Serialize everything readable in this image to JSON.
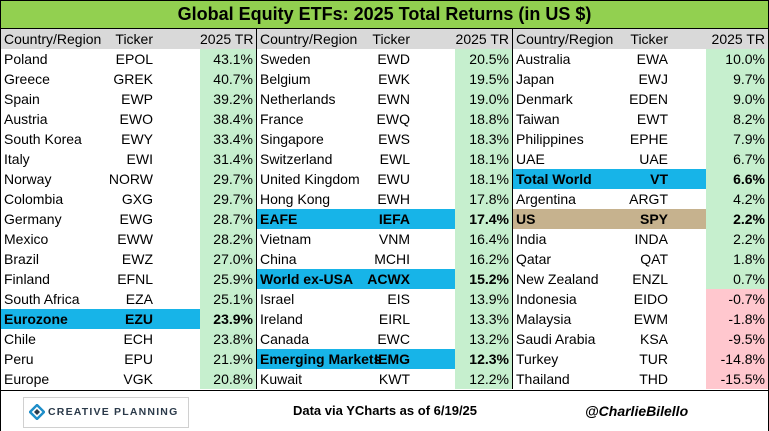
{
  "chart_data": {
    "type": "table",
    "title": "Global Equity ETFs: 2025 Total Returns (in US $)",
    "columns": [
      "Country/Region",
      "Ticker",
      "2025 TR"
    ],
    "unit": "%",
    "tables": [
      {
        "rows": [
          {
            "name": "Poland",
            "ticker": "EPOL",
            "value": "43.1%",
            "v": 43.1
          },
          {
            "name": "Greece",
            "ticker": "GREK",
            "value": "40.7%",
            "v": 40.7
          },
          {
            "name": "Spain",
            "ticker": "EWP",
            "value": "39.2%",
            "v": 39.2
          },
          {
            "name": "Austria",
            "ticker": "EWO",
            "value": "38.4%",
            "v": 38.4
          },
          {
            "name": "South Korea",
            "ticker": "EWY",
            "value": "33.4%",
            "v": 33.4
          },
          {
            "name": "Italy",
            "ticker": "EWI",
            "value": "31.4%",
            "v": 31.4
          },
          {
            "name": "Norway",
            "ticker": "NORW",
            "value": "29.7%",
            "v": 29.7
          },
          {
            "name": "Colombia",
            "ticker": "GXG",
            "value": "29.7%",
            "v": 29.7
          },
          {
            "name": "Germany",
            "ticker": "EWG",
            "value": "28.7%",
            "v": 28.7
          },
          {
            "name": "Mexico",
            "ticker": "EWW",
            "value": "28.2%",
            "v": 28.2
          },
          {
            "name": "Brazil",
            "ticker": "EWZ",
            "value": "27.0%",
            "v": 27.0
          },
          {
            "name": "Finland",
            "ticker": "EFNL",
            "value": "25.9%",
            "v": 25.9
          },
          {
            "name": "South Africa",
            "ticker": "EZA",
            "value": "25.1%",
            "v": 25.1
          },
          {
            "name": "Eurozone",
            "ticker": "EZU",
            "value": "23.9%",
            "v": 23.9,
            "highlight": "blue"
          },
          {
            "name": "Chile",
            "ticker": "ECH",
            "value": "23.8%",
            "v": 23.8
          },
          {
            "name": "Peru",
            "ticker": "EPU",
            "value": "21.9%",
            "v": 21.9
          },
          {
            "name": "Europe",
            "ticker": "VGK",
            "value": "20.8%",
            "v": 20.8
          }
        ]
      },
      {
        "rows": [
          {
            "name": "Sweden",
            "ticker": "EWD",
            "value": "20.5%",
            "v": 20.5
          },
          {
            "name": "Belgium",
            "ticker": "EWK",
            "value": "19.5%",
            "v": 19.5
          },
          {
            "name": "Netherlands",
            "ticker": "EWN",
            "value": "19.0%",
            "v": 19.0
          },
          {
            "name": "France",
            "ticker": "EWQ",
            "value": "18.8%",
            "v": 18.8
          },
          {
            "name": "Singapore",
            "ticker": "EWS",
            "value": "18.3%",
            "v": 18.3
          },
          {
            "name": "Switzerland",
            "ticker": "EWL",
            "value": "18.1%",
            "v": 18.1
          },
          {
            "name": "United Kingdom",
            "ticker": "EWU",
            "value": "18.1%",
            "v": 18.1
          },
          {
            "name": "Hong Kong",
            "ticker": "EWH",
            "value": "17.8%",
            "v": 17.8
          },
          {
            "name": "EAFE",
            "ticker": "IEFA",
            "value": "17.4%",
            "v": 17.4,
            "highlight": "blue"
          },
          {
            "name": "Vietnam",
            "ticker": "VNM",
            "value": "16.4%",
            "v": 16.4
          },
          {
            "name": "China",
            "ticker": "MCHI",
            "value": "16.2%",
            "v": 16.2
          },
          {
            "name": "World ex-USA",
            "ticker": "ACWX",
            "value": "15.2%",
            "v": 15.2,
            "highlight": "blue"
          },
          {
            "name": "Israel",
            "ticker": "EIS",
            "value": "13.9%",
            "v": 13.9
          },
          {
            "name": "Ireland",
            "ticker": "EIRL",
            "value": "13.3%",
            "v": 13.3
          },
          {
            "name": "Canada",
            "ticker": "EWC",
            "value": "13.2%",
            "v": 13.2
          },
          {
            "name": "Emerging Markets",
            "ticker": "IEMG",
            "value": "12.3%",
            "v": 12.3,
            "highlight": "blue"
          },
          {
            "name": "Kuwait",
            "ticker": "KWT",
            "value": "12.2%",
            "v": 12.2
          }
        ]
      },
      {
        "rows": [
          {
            "name": "Australia",
            "ticker": "EWA",
            "value": "10.0%",
            "v": 10.0
          },
          {
            "name": "Japan",
            "ticker": "EWJ",
            "value": "9.7%",
            "v": 9.7
          },
          {
            "name": "Denmark",
            "ticker": "EDEN",
            "value": "9.0%",
            "v": 9.0
          },
          {
            "name": "Taiwan",
            "ticker": "EWT",
            "value": "8.2%",
            "v": 8.2
          },
          {
            "name": "Philippines",
            "ticker": "EPHE",
            "value": "7.9%",
            "v": 7.9
          },
          {
            "name": "UAE",
            "ticker": "UAE",
            "value": "6.7%",
            "v": 6.7
          },
          {
            "name": "Total World",
            "ticker": "VT",
            "value": "6.6%",
            "v": 6.6,
            "highlight": "blue"
          },
          {
            "name": "Argentina",
            "ticker": "ARGT",
            "value": "4.2%",
            "v": 4.2
          },
          {
            "name": "US",
            "ticker": "SPY",
            "value": "2.2%",
            "v": 2.2,
            "highlight": "tan"
          },
          {
            "name": "India",
            "ticker": "INDA",
            "value": "2.2%",
            "v": 2.2
          },
          {
            "name": "Qatar",
            "ticker": "QAT",
            "value": "1.8%",
            "v": 1.8
          },
          {
            "name": "New Zealand",
            "ticker": "ENZL",
            "value": "0.7%",
            "v": 0.7
          },
          {
            "name": "Indonesia",
            "ticker": "EIDO",
            "value": "-0.7%",
            "v": -0.7
          },
          {
            "name": "Malaysia",
            "ticker": "EWM",
            "value": "-1.8%",
            "v": -1.8
          },
          {
            "name": "Saudi Arabia",
            "ticker": "KSA",
            "value": "-9.5%",
            "v": -9.5
          },
          {
            "name": "Turkey",
            "ticker": "TUR",
            "value": "-14.8%",
            "v": -14.8
          },
          {
            "name": "Thailand",
            "ticker": "THD",
            "value": "-15.5%",
            "v": -15.5
          }
        ]
      }
    ]
  },
  "colors": {
    "title_bg": "#92d050",
    "header_bg": "#d9d9d9",
    "positive_bg": "#c6efce",
    "negative_bg": "#ffc7ce",
    "highlight_blue": "#17b4e8",
    "highlight_tan": "#c6b28e",
    "logo_accent": "#1f8ec9"
  },
  "footer": {
    "logo_text": "CREATIVE PLANNING",
    "logo_icon": "creative-planning-logo-icon",
    "source": "Data via YCharts as of 6/19/25",
    "handle": "@CharlieBilello"
  }
}
